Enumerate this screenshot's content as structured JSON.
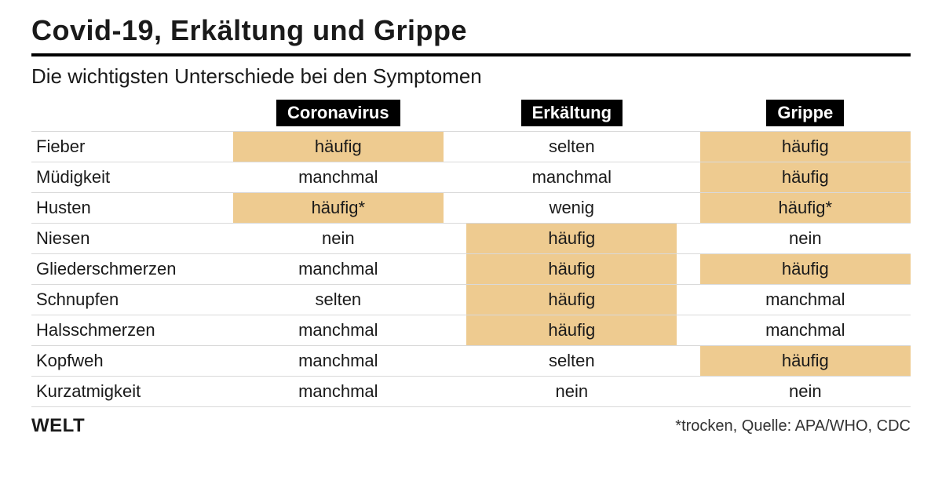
{
  "title": "Covid-19, Erkältung und Grippe",
  "subtitle": "Die wichtigsten Unterschiede bei den Symptomen",
  "brand": "WELT",
  "source_note": "*trocken, Quelle: APA/WHO, CDC",
  "highlight_color": "#eecb90",
  "header_bg": "#000000",
  "header_fg": "#ffffff",
  "grid_color": "#d9d9d9",
  "columns": [
    "Coronavirus",
    "Erkältung",
    "Grippe"
  ],
  "rows": [
    {
      "label": "Fieber",
      "cells": [
        {
          "value": "häufig",
          "hl": true
        },
        {
          "value": "selten",
          "hl": false
        },
        {
          "value": "häufig",
          "hl": true
        }
      ]
    },
    {
      "label": "Müdigkeit",
      "cells": [
        {
          "value": "manchmal",
          "hl": false
        },
        {
          "value": "manchmal",
          "hl": false
        },
        {
          "value": "häufig",
          "hl": true
        }
      ]
    },
    {
      "label": "Husten",
      "cells": [
        {
          "value": "häufig*",
          "hl": true
        },
        {
          "value": "wenig",
          "hl": false
        },
        {
          "value": "häufig*",
          "hl": true
        }
      ]
    },
    {
      "label": "Niesen",
      "cells": [
        {
          "value": "nein",
          "hl": false
        },
        {
          "value": "häufig",
          "hl": true
        },
        {
          "value": "nein",
          "hl": false
        }
      ]
    },
    {
      "label": "Gliederschmerzen",
      "cells": [
        {
          "value": "manchmal",
          "hl": false
        },
        {
          "value": "häufig",
          "hl": true
        },
        {
          "value": "häufig",
          "hl": true
        }
      ]
    },
    {
      "label": "Schnupfen",
      "cells": [
        {
          "value": "selten",
          "hl": false
        },
        {
          "value": "häufig",
          "hl": true
        },
        {
          "value": "manchmal",
          "hl": false
        }
      ]
    },
    {
      "label": "Halsschmerzen",
      "cells": [
        {
          "value": "manchmal",
          "hl": false
        },
        {
          "value": "häufig",
          "hl": true
        },
        {
          "value": "manchmal",
          "hl": false
        }
      ]
    },
    {
      "label": "Kopfweh",
      "cells": [
        {
          "value": "manchmal",
          "hl": false
        },
        {
          "value": "selten",
          "hl": false
        },
        {
          "value": "häufig",
          "hl": true
        }
      ]
    },
    {
      "label": "Kurzatmigkeit",
      "cells": [
        {
          "value": "manchmal",
          "hl": false
        },
        {
          "value": "nein",
          "hl": false
        },
        {
          "value": "nein",
          "hl": false
        }
      ]
    }
  ]
}
